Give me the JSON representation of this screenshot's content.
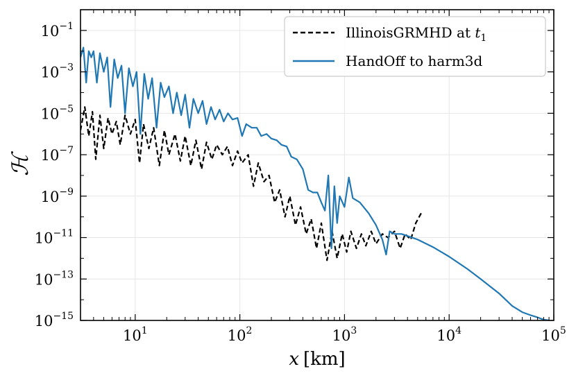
{
  "chart_data": {
    "type": "line",
    "title": "",
    "xlabel": "x [km]",
    "xlabel_var": "x",
    "xlabel_unit": "[km]",
    "ylabel": "ℋ",
    "xscale": "log",
    "yscale": "log",
    "xlim": [
      3,
      100000
    ],
    "ylim": [
      1e-15,
      1
    ],
    "grid": true,
    "legend_position": "top-right",
    "x_ticks": [
      {
        "value": 10,
        "base": "10",
        "exp": "1"
      },
      {
        "value": 100,
        "base": "10",
        "exp": "2"
      },
      {
        "value": 1000,
        "base": "10",
        "exp": "3"
      },
      {
        "value": 10000,
        "base": "10",
        "exp": "4"
      },
      {
        "value": 100000,
        "base": "10",
        "exp": "5"
      }
    ],
    "y_ticks": [
      {
        "value": 0.1,
        "base": "10",
        "exp": "−1"
      },
      {
        "value": 0.001,
        "base": "10",
        "exp": "−3"
      },
      {
        "value": 1e-05,
        "base": "10",
        "exp": "−5"
      },
      {
        "value": 1e-07,
        "base": "10",
        "exp": "−7"
      },
      {
        "value": 1e-09,
        "base": "10",
        "exp": "−9"
      },
      {
        "value": 1e-11,
        "base": "10",
        "exp": "−11"
      },
      {
        "value": 1e-13,
        "base": "10",
        "exp": "−13"
      },
      {
        "value": 1e-15,
        "base": "10",
        "exp": "−15"
      }
    ],
    "series": [
      {
        "name": "IllinoisGRMHD at t1",
        "legend_text": "IllinoisGRMHD at ",
        "legend_math": "t",
        "legend_sub": "1",
        "color": "#000000",
        "dash": "dashed",
        "x": [
          3.0,
          3.3,
          3.6,
          3.9,
          4.2,
          4.6,
          5.0,
          5.5,
          6.0,
          6.6,
          7.2,
          8.0,
          9.0,
          10,
          11,
          12,
          13.5,
          15,
          17,
          19,
          21,
          24,
          27,
          30,
          34,
          38,
          43,
          48,
          54,
          60,
          68,
          76,
          85,
          95,
          105,
          120,
          135,
          150,
          170,
          190,
          215,
          240,
          270,
          300,
          340,
          380,
          430,
          480,
          540,
          600,
          680,
          760,
          850,
          950,
          1050,
          1150,
          1300,
          1450,
          1600,
          1800,
          2000,
          2300,
          2600,
          3000,
          3400,
          3800,
          4300,
          4800,
          5400
        ],
        "y": [
          1.5e-06,
          2e-05,
          8e-07,
          1.2e-05,
          6e-08,
          8e-06,
          2e-07,
          6e-06,
          1e-06,
          4e-06,
          3e-07,
          8e-06,
          1e-06,
          5e-06,
          4e-08,
          3e-06,
          2e-07,
          2e-06,
          3e-08,
          1.5e-06,
          1e-07,
          1e-06,
          5e-08,
          8e-07,
          3e-08,
          5e-07,
          2e-08,
          4e-07,
          6e-08,
          3e-07,
          1e-07,
          2.5e-07,
          3e-08,
          1.5e-07,
          4e-08,
          1e-07,
          3e-09,
          4e-08,
          5e-09,
          1e-08,
          5e-10,
          2e-09,
          1e-10,
          1e-09,
          4e-11,
          3e-10,
          1.5e-11,
          8e-11,
          3e-12,
          5e-11,
          8e-13,
          2e-11,
          1e-12,
          1.5e-11,
          2e-12,
          2e-11,
          3e-12,
          1.5e-11,
          4e-12,
          2e-11,
          5e-12,
          1.5e-11,
          1e-11,
          2e-11,
          3e-12,
          1.5e-11,
          8e-12,
          5e-11,
          1.5e-10
        ]
      },
      {
        "name": "HandOff to harm3d",
        "legend_text": "HandOff to harm3d",
        "color": "#1f77b4",
        "dash": "solid",
        "x": [
          3.0,
          3.2,
          3.4,
          3.6,
          3.8,
          4.0,
          4.3,
          4.6,
          5.0,
          5.4,
          5.8,
          6.3,
          6.8,
          7.4,
          8.0,
          8.7,
          9.5,
          10.3,
          11.2,
          12.2,
          13.3,
          14.5,
          16,
          17.5,
          19,
          21,
          23,
          25,
          27.5,
          30,
          33,
          36,
          40,
          44,
          48,
          53,
          58,
          64,
          70,
          77,
          85,
          95,
          105,
          115,
          130,
          145,
          160,
          180,
          200,
          225,
          250,
          280,
          310,
          350,
          400,
          450,
          500,
          550,
          600,
          650,
          700,
          750,
          800,
          850,
          900,
          1000,
          1100,
          1200,
          1400,
          1700,
          2000,
          2300,
          2500,
          2700,
          3000,
          3500,
          4000,
          5000,
          7000,
          10000,
          15000,
          20000,
          30000,
          40000,
          50000,
          60000,
          70000,
          80000,
          90000
        ],
        "y": [
          0.005,
          0.015,
          0.0003,
          0.01,
          0.005,
          0.01,
          0.0003,
          0.008,
          0.001,
          0.005,
          2e-05,
          0.004,
          0.0005,
          0.002,
          1e-05,
          0.0015,
          0.0002,
          0.001,
          1e-06,
          0.0008,
          5e-05,
          0.0005,
          2e-06,
          0.0003,
          6e-05,
          0.0002,
          1e-05,
          0.0001,
          8e-06,
          8e-05,
          2e-06,
          5e-05,
          1e-05,
          4e-05,
          3e-06,
          2e-05,
          5e-06,
          1.5e-05,
          4e-06,
          1e-05,
          5e-06,
          6e-06,
          8e-07,
          3e-06,
          2e-06,
          2e-06,
          8e-07,
          1e-06,
          6e-07,
          5e-07,
          3e-07,
          2.5e-07,
          8e-08,
          6e-08,
          2e-08,
          2e-09,
          1.5e-09,
          1.5e-09,
          5e-10,
          2e-10,
          1e-08,
          3e-12,
          3e-09,
          5e-11,
          1e-09,
          3e-10,
          8e-09,
          8e-10,
          5e-10,
          1.5e-10,
          4e-11,
          8e-12,
          1.5e-12,
          2e-11,
          1.5e-11,
          1.5e-11,
          1.2e-11,
          8e-12,
          3.5e-12,
          1.2e-12,
          3e-13,
          1e-13,
          2e-14,
          5e-15,
          2.5e-15,
          1.8e-15,
          1.4e-15,
          1.1e-15,
          1e-15
        ]
      }
    ]
  }
}
